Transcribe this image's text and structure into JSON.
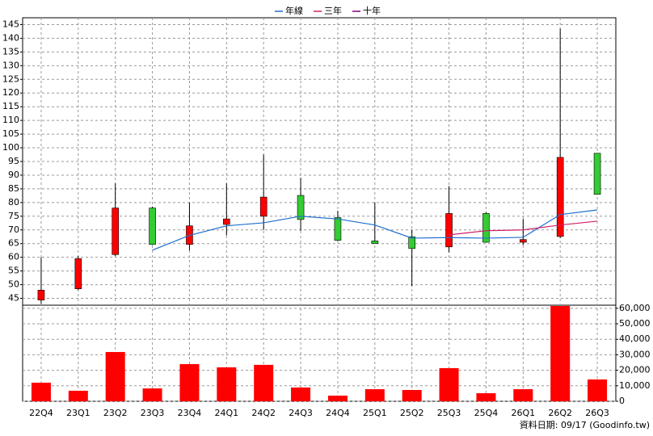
{
  "chart_data": [
    {
      "type": "candlestick",
      "ylim": [
        42.5,
        147.5
      ],
      "yticks": [
        45,
        50,
        55,
        60,
        65,
        70,
        75,
        80,
        85,
        90,
        95,
        100,
        105,
        110,
        115,
        120,
        125,
        130,
        135,
        140,
        145
      ],
      "grid": true,
      "up_color": "#ff0000",
      "down_color": "#33cc33",
      "legend": "top",
      "open": [
        44.4,
        48.5,
        61,
        78,
        64.7,
        72,
        75,
        82.6,
        74.5,
        66,
        67.5,
        63.8,
        76,
        65.5,
        67.6,
        98
      ],
      "high": [
        60,
        60.5,
        87,
        78.5,
        80,
        87,
        97.5,
        89,
        77,
        80,
        70,
        86,
        76.5,
        74,
        143.5,
        98
      ],
      "low": [
        43,
        48,
        60.5,
        64.5,
        62.5,
        68,
        70,
        69.7,
        66,
        65,
        49.5,
        61.8,
        65.5,
        64.5,
        67,
        83
      ],
      "close": [
        48,
        59.5,
        78,
        64.7,
        71.5,
        74,
        82,
        73.8,
        66.2,
        65,
        63.2,
        76,
        65.5,
        66.5,
        96.5,
        83
      ],
      "series": [
        {
          "name": "年線",
          "color": "#1f6fd0",
          "values": [
            null,
            null,
            null,
            62.6,
            68,
            71.5,
            72.6,
            75,
            74,
            71.8,
            67,
            67.2,
            67,
            67.3,
            75.6,
            77.3
          ]
        },
        {
          "name": "三年",
          "color": "#d0206a",
          "values": [
            null,
            null,
            null,
            null,
            null,
            null,
            null,
            null,
            null,
            null,
            null,
            68.2,
            69.7,
            70,
            71.8,
            73.2
          ]
        },
        {
          "name": "十年",
          "color": "#800080",
          "values": [
            null,
            null,
            null,
            null,
            null,
            null,
            null,
            null,
            null,
            null,
            null,
            null,
            null,
            null,
            null,
            null
          ]
        }
      ]
    },
    {
      "type": "bar",
      "color": "#ff0000",
      "grid": true,
      "categories": [
        "22Q4",
        "23Q1",
        "23Q2",
        "23Q3",
        "23Q4",
        "24Q1",
        "24Q2",
        "24Q3",
        "24Q4",
        "25Q1",
        "25Q2",
        "25Q3",
        "25Q4",
        "26Q1",
        "26Q2",
        "26Q3"
      ],
      "values": [
        12000,
        6800,
        31800,
        8300,
        24000,
        21900,
        23500,
        8900,
        3650,
        7800,
        7300,
        21400,
        5200,
        7800,
        61500,
        14100
      ],
      "ylim": [
        0,
        62000
      ],
      "yticks": [
        0,
        {
          "value": 10000,
          "label": "10,000"
        },
        {
          "value": 20000,
          "label": "20,000"
        },
        {
          "value": 30000,
          "label": "30,000"
        },
        {
          "value": 40000,
          "label": "40,000"
        },
        {
          "value": 50000,
          "label": "50,000"
        },
        {
          "value": 60000,
          "label": "60,000"
        }
      ]
    }
  ],
  "footer": "資料日期: 09/17  (Goodinfo.tw)"
}
